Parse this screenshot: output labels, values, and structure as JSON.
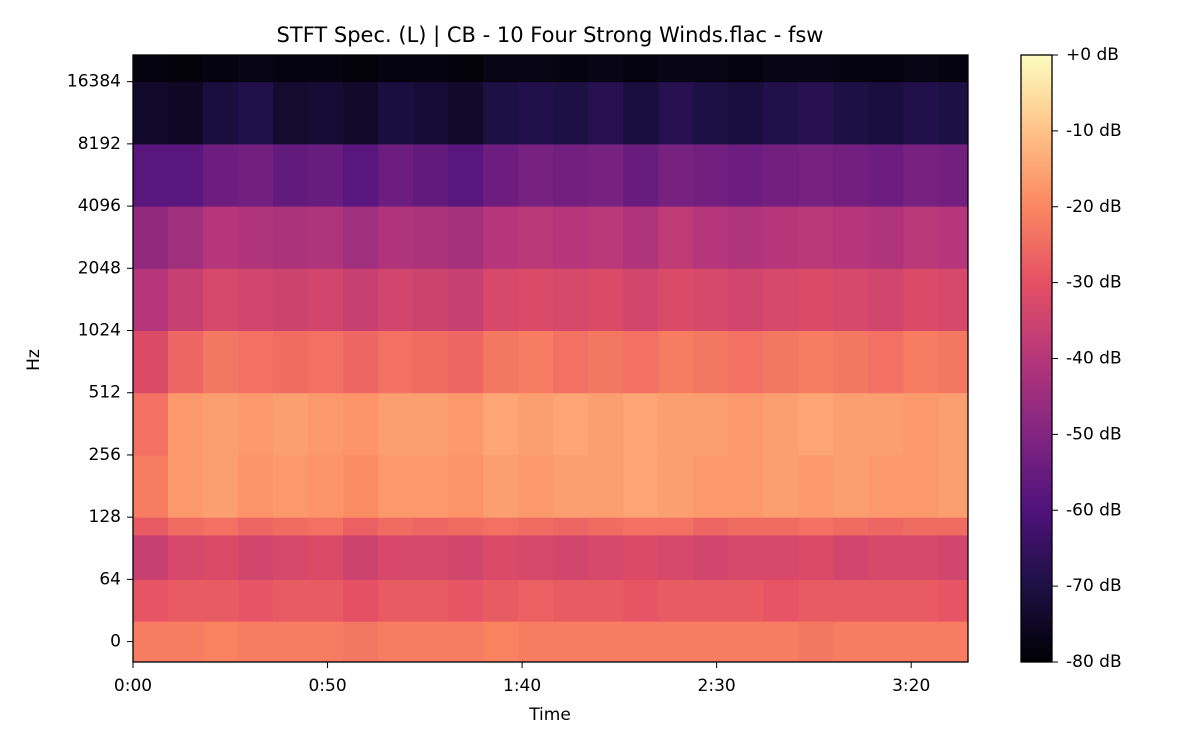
{
  "chart_data": {
    "type": "spectrogram",
    "title": "STFT Spec. (L) | CB - 10 Four Strong Winds.flac - fsw",
    "x_label": "Time",
    "y_label": "Hz",
    "xlim": [
      0,
      214.6
    ],
    "ylim": [
      -21,
      22050
    ],
    "yscale": "symlog",
    "linthresh": 64,
    "xticks": [
      {
        "value": 0,
        "label": "0:00"
      },
      {
        "value": 50,
        "label": "0:50"
      },
      {
        "value": 100,
        "label": "1:40"
      },
      {
        "value": 150,
        "label": "2:30"
      },
      {
        "value": 200,
        "label": "3:20"
      }
    ],
    "yticks": [
      0,
      64,
      128,
      256,
      512,
      1024,
      2048,
      4096,
      8192,
      16384
    ],
    "time_edges": [
      0,
      9,
      18,
      27,
      36,
      45,
      54,
      63,
      72,
      81,
      90,
      99,
      108,
      117,
      126,
      135,
      144,
      153,
      162,
      171,
      180,
      189,
      198,
      207,
      214.6
    ],
    "freq_edges": [
      -21,
      21,
      64,
      105,
      128,
      256,
      512,
      1024,
      2048,
      4096,
      8192,
      16384,
      22050
    ],
    "z": [
      [
        -22,
        -22,
        -21,
        -22,
        -22,
        -22,
        -23,
        -22,
        -22,
        -22,
        -21,
        -22,
        -22,
        -22,
        -22,
        -22,
        -22,
        -22,
        -22,
        -23,
        -22,
        -22,
        -22,
        -22
      ],
      [
        -29,
        -28,
        -28,
        -29,
        -28,
        -28,
        -30,
        -28,
        -28,
        -29,
        -28,
        -27,
        -28,
        -28,
        -29,
        -28,
        -28,
        -28,
        -29,
        -28,
        -28,
        -28,
        -28,
        -29
      ],
      [
        -36,
        -33,
        -32,
        -34,
        -33,
        -32,
        -35,
        -33,
        -33,
        -34,
        -32,
        -33,
        -34,
        -33,
        -32,
        -33,
        -34,
        -33,
        -33,
        -32,
        -34,
        -33,
        -33,
        -34
      ],
      [
        -28,
        -25,
        -24,
        -26,
        -25,
        -24,
        -27,
        -25,
        -26,
        -25,
        -24,
        -25,
        -26,
        -25,
        -24,
        -24,
        -26,
        -25,
        -25,
        -24,
        -25,
        -26,
        -25,
        -25
      ],
      [
        -22,
        -17,
        -16,
        -18,
        -17,
        -18,
        -19,
        -17,
        -17,
        -18,
        -16,
        -17,
        -16,
        -16,
        -15,
        -16,
        -17,
        -17,
        -16,
        -17,
        -16,
        -17,
        -17,
        -16
      ],
      [
        -24,
        -17,
        -16,
        -17,
        -16,
        -17,
        -18,
        -16,
        -16,
        -17,
        -15,
        -16,
        -15,
        -16,
        -15,
        -16,
        -16,
        -17,
        -16,
        -15,
        -16,
        -16,
        -17,
        -16
      ],
      [
        -32,
        -26,
        -23,
        -24,
        -25,
        -24,
        -26,
        -24,
        -25,
        -26,
        -23,
        -22,
        -24,
        -23,
        -24,
        -22,
        -23,
        -24,
        -23,
        -22,
        -23,
        -24,
        -22,
        -23
      ],
      [
        -40,
        -36,
        -33,
        -34,
        -35,
        -34,
        -36,
        -34,
        -35,
        -36,
        -33,
        -32,
        -33,
        -32,
        -34,
        -32,
        -33,
        -34,
        -33,
        -32,
        -33,
        -34,
        -32,
        -33
      ],
      [
        -47,
        -44,
        -40,
        -41,
        -42,
        -41,
        -44,
        -41,
        -42,
        -43,
        -40,
        -39,
        -40,
        -39,
        -41,
        -38,
        -40,
        -41,
        -40,
        -39,
        -40,
        -41,
        -39,
        -40
      ],
      [
        -58,
        -58,
        -54,
        -53,
        -56,
        -55,
        -58,
        -54,
        -56,
        -58,
        -54,
        -52,
        -53,
        -52,
        -55,
        -52,
        -53,
        -54,
        -53,
        -52,
        -53,
        -54,
        -52,
        -53
      ],
      [
        -74,
        -75,
        -71,
        -69,
        -73,
        -72,
        -74,
        -71,
        -72,
        -74,
        -70,
        -69,
        -70,
        -68,
        -71,
        -68,
        -70,
        -71,
        -69,
        -68,
        -70,
        -71,
        -69,
        -70
      ],
      [
        -78,
        -79,
        -78,
        -77,
        -78,
        -78,
        -79,
        -78,
        -78,
        -79,
        -77,
        -77,
        -78,
        -77,
        -78,
        -77,
        -77,
        -78,
        -77,
        -77,
        -78,
        -78,
        -77,
        -78
      ]
    ],
    "clim": [
      -80,
      0
    ],
    "colormap": [
      "#000004",
      "#1c1044",
      "#4f127b",
      "#812581",
      "#b5367a",
      "#e55064",
      "#fb8761",
      "#fec287",
      "#fcfdbf"
    ],
    "colorbar_ticks": [
      {
        "value": 0,
        "label": "+0 dB"
      },
      {
        "value": -10,
        "label": "-10 dB"
      },
      {
        "value": -20,
        "label": "-20 dB"
      },
      {
        "value": -30,
        "label": "-30 dB"
      },
      {
        "value": -40,
        "label": "-40 dB"
      },
      {
        "value": -50,
        "label": "-50 dB"
      },
      {
        "value": -60,
        "label": "-60 dB"
      },
      {
        "value": -70,
        "label": "-70 dB"
      },
      {
        "value": -80,
        "label": "-80 dB"
      }
    ]
  }
}
